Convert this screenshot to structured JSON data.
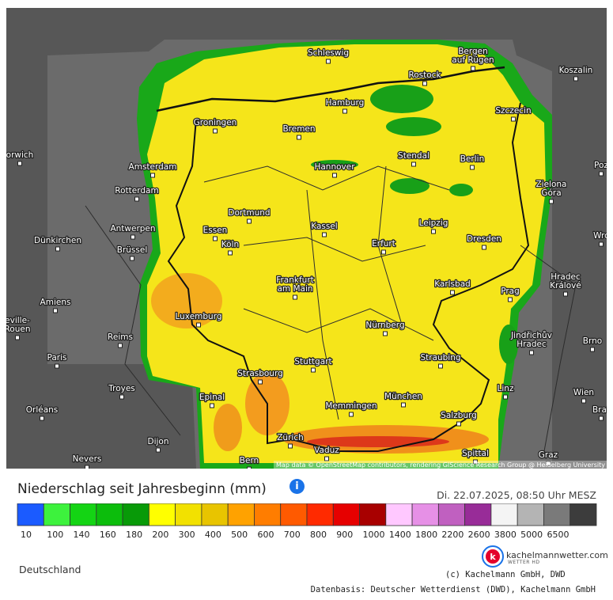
{
  "map": {
    "places": [
      [
        "Schleswig"
      ],
      [
        "Bergen",
        "auf Rügen"
      ],
      [
        "Rostock"
      ],
      [
        "Koszalin"
      ],
      [
        "Hamburg"
      ],
      [
        "Szczecin"
      ],
      [
        "Groningen"
      ],
      [
        "Bremen"
      ],
      [
        "Stendal"
      ],
      [
        "Berlin"
      ],
      [
        "orwich"
      ],
      [
        "Amsterdam"
      ],
      [
        "Hannover"
      ],
      [
        "Poz"
      ],
      [
        "Zielona",
        "Góra"
      ],
      [
        "Rotterdam"
      ],
      [
        "Dortmund"
      ],
      [
        "Leipzig"
      ],
      [
        "Antwerpen"
      ],
      [
        "Essen"
      ],
      [
        "Kassel"
      ],
      [
        "Dresden"
      ],
      [
        "Wrc"
      ],
      [
        "Dünkirchen"
      ],
      [
        "Köln"
      ],
      [
        "Erfurt"
      ],
      [
        "Brüssel"
      ],
      [
        "Frankfurt",
        "am Main"
      ],
      [
        "Karlsbad"
      ],
      [
        "Hradec",
        "Králové"
      ],
      [
        "Prag"
      ],
      [
        "Amiens"
      ],
      [
        "Luxemburg"
      ],
      [
        "eville-",
        "Rouen"
      ],
      [
        "Nürnberg"
      ],
      [
        "Reims"
      ],
      [
        "Jindřichův",
        "Hradec"
      ],
      [
        "Brno"
      ],
      [
        "Paris"
      ],
      [
        "Stuttgart"
      ],
      [
        "Straubing"
      ],
      [
        "Strasbourg"
      ],
      [
        "Troyes"
      ],
      [
        "Linz"
      ],
      [
        "Wien"
      ],
      [
        "Epinal"
      ],
      [
        "München"
      ],
      [
        "Memmingen"
      ],
      [
        "Orléans"
      ],
      [
        "Brat"
      ],
      [
        "Salzburg"
      ],
      [
        "Zürich"
      ],
      [
        "Dijon"
      ],
      [
        "Vaduz"
      ],
      [
        "Spittal"
      ],
      [
        "Nevers"
      ],
      [
        "Bern"
      ],
      [
        "Graz"
      ]
    ],
    "attribution": "Map data © OpenStreetMap contributors, rendering GIScience Research Group @ Heidelberg University"
  },
  "header": {
    "title": "Niederschlag seit Jahresbeginn (mm)",
    "date": "Di. 22.07.2025, 08:50 Uhr MESZ"
  },
  "legend": {
    "colors": [
      "#1b5bff",
      "#3df23d",
      "#14d414",
      "#0cbd0c",
      "#089a08",
      "#ffff00",
      "#f2e100",
      "#e8c400",
      "#ffa200",
      "#ff7d00",
      "#ff5a00",
      "#ff2a00",
      "#e60000",
      "#a80000",
      "#ffc8ff",
      "#e690e6",
      "#c060c0",
      "#982c98",
      "#f4f4f4",
      "#b4b4b4",
      "#7a7a7a",
      "#3c3c3c"
    ],
    "labels": [
      "10",
      "100",
      "140",
      "160",
      "180",
      "200",
      "300",
      "400",
      "500",
      "600",
      "700",
      "800",
      "900",
      "1000",
      "1400",
      "1800",
      "2200",
      "2600",
      "3800",
      "5000",
      "6500"
    ]
  },
  "footer": {
    "region": "Deutschland",
    "brand": "kachelmannwetter.com",
    "brand_sub": "WETTER HD",
    "copyright": "(c) Kachelmann GmbH, DWD",
    "basis": "Datenbasis: Deutscher Wetterdienst (DWD), Kachelmann GmbH"
  }
}
